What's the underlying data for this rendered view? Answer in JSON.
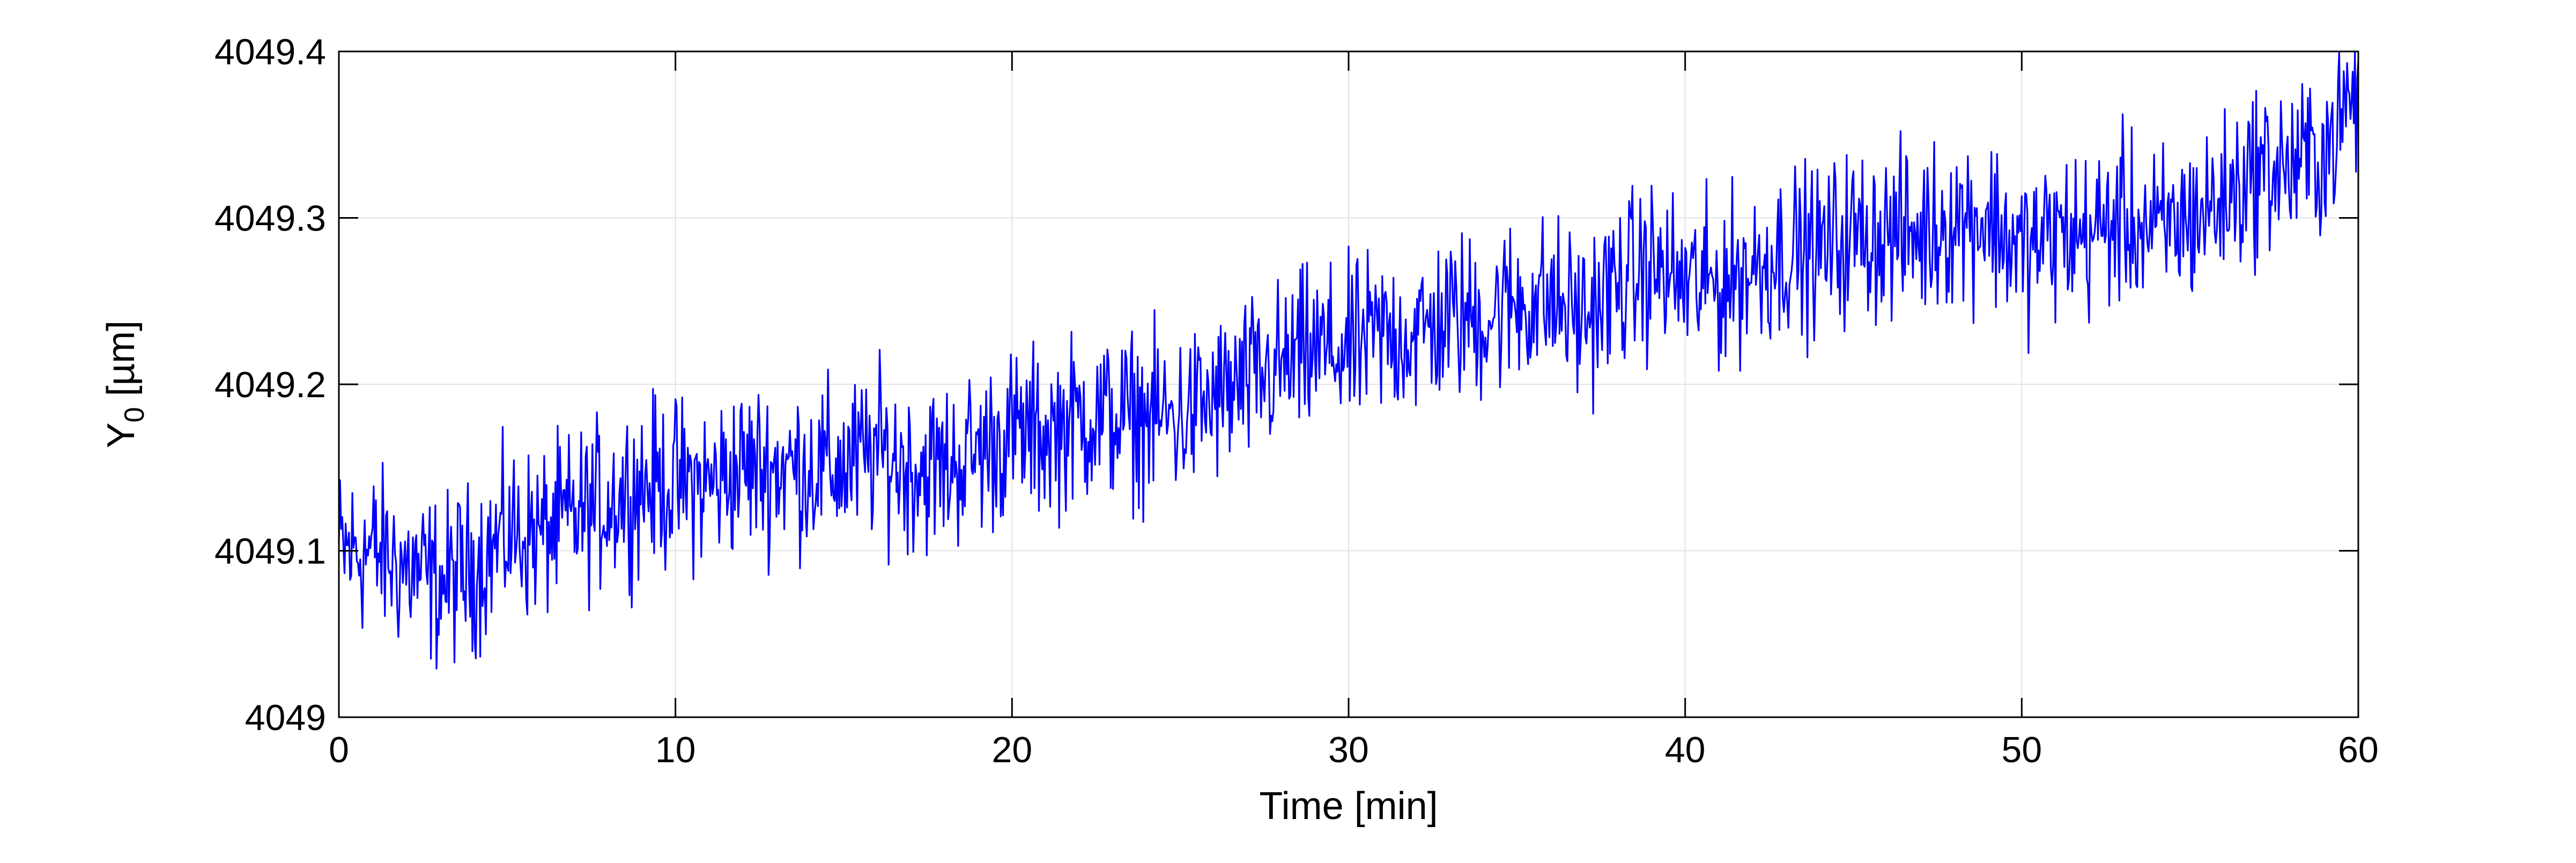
{
  "chart_data": {
    "type": "line",
    "title": "",
    "xlabel": "Time [min]",
    "ylabel_main": "Y",
    "ylabel_sub": "0",
    "ylabel_unit": " [µm]",
    "xlim": [
      0,
      60
    ],
    "ylim": [
      4049,
      4049.4
    ],
    "x_ticks": [
      0,
      10,
      20,
      30,
      40,
      50,
      60
    ],
    "x_tick_labels": [
      "0",
      "10",
      "20",
      "30",
      "40",
      "50",
      "60"
    ],
    "y_ticks": [
      4049,
      4049.1,
      4049.2,
      4049.3,
      4049.4
    ],
    "y_tick_labels": [
      "4049",
      "4049.1",
      "4049.2",
      "4049.3",
      "4049.4"
    ],
    "grid": true,
    "legend": "none",
    "series": [
      {
        "color": "#0000ff",
        "x": [
          0,
          1,
          2,
          3,
          4,
          5,
          6,
          7,
          8,
          9,
          10,
          11,
          12,
          13,
          14,
          15,
          16,
          17,
          18,
          19,
          20,
          21,
          22,
          23,
          24,
          25,
          26,
          27,
          28,
          29,
          30,
          31,
          32,
          33,
          34,
          35,
          36,
          37,
          38,
          39,
          40,
          41,
          42,
          43,
          44,
          45,
          46,
          47,
          48,
          49,
          50,
          51,
          52,
          53,
          54,
          55,
          56,
          57,
          58,
          59,
          60
        ],
        "y": [
          4049.1,
          4049.1,
          4049.09,
          4049.08,
          4049.09,
          4049.11,
          4049.11,
          4049.12,
          4049.13,
          4049.14,
          4049.14,
          4049.14,
          4049.15,
          4049.15,
          4049.15,
          4049.15,
          4049.16,
          4049.15,
          4049.15,
          4049.16,
          4049.17,
          4049.17,
          4049.18,
          4049.18,
          4049.18,
          4049.18,
          4049.19,
          4049.2,
          4049.21,
          4049.22,
          4049.22,
          4049.23,
          4049.23,
          4049.24,
          4049.24,
          4049.25,
          4049.25,
          4049.24,
          4049.26,
          4049.27,
          4049.26,
          4049.26,
          4049.27,
          4049.28,
          4049.28,
          4049.29,
          4049.29,
          4049.29,
          4049.3,
          4049.3,
          4049.28,
          4049.29,
          4049.29,
          4049.3,
          4049.29,
          4049.3,
          4049.31,
          4049.33,
          4049.33,
          4049.34,
          4049.38
        ]
      }
    ]
  }
}
